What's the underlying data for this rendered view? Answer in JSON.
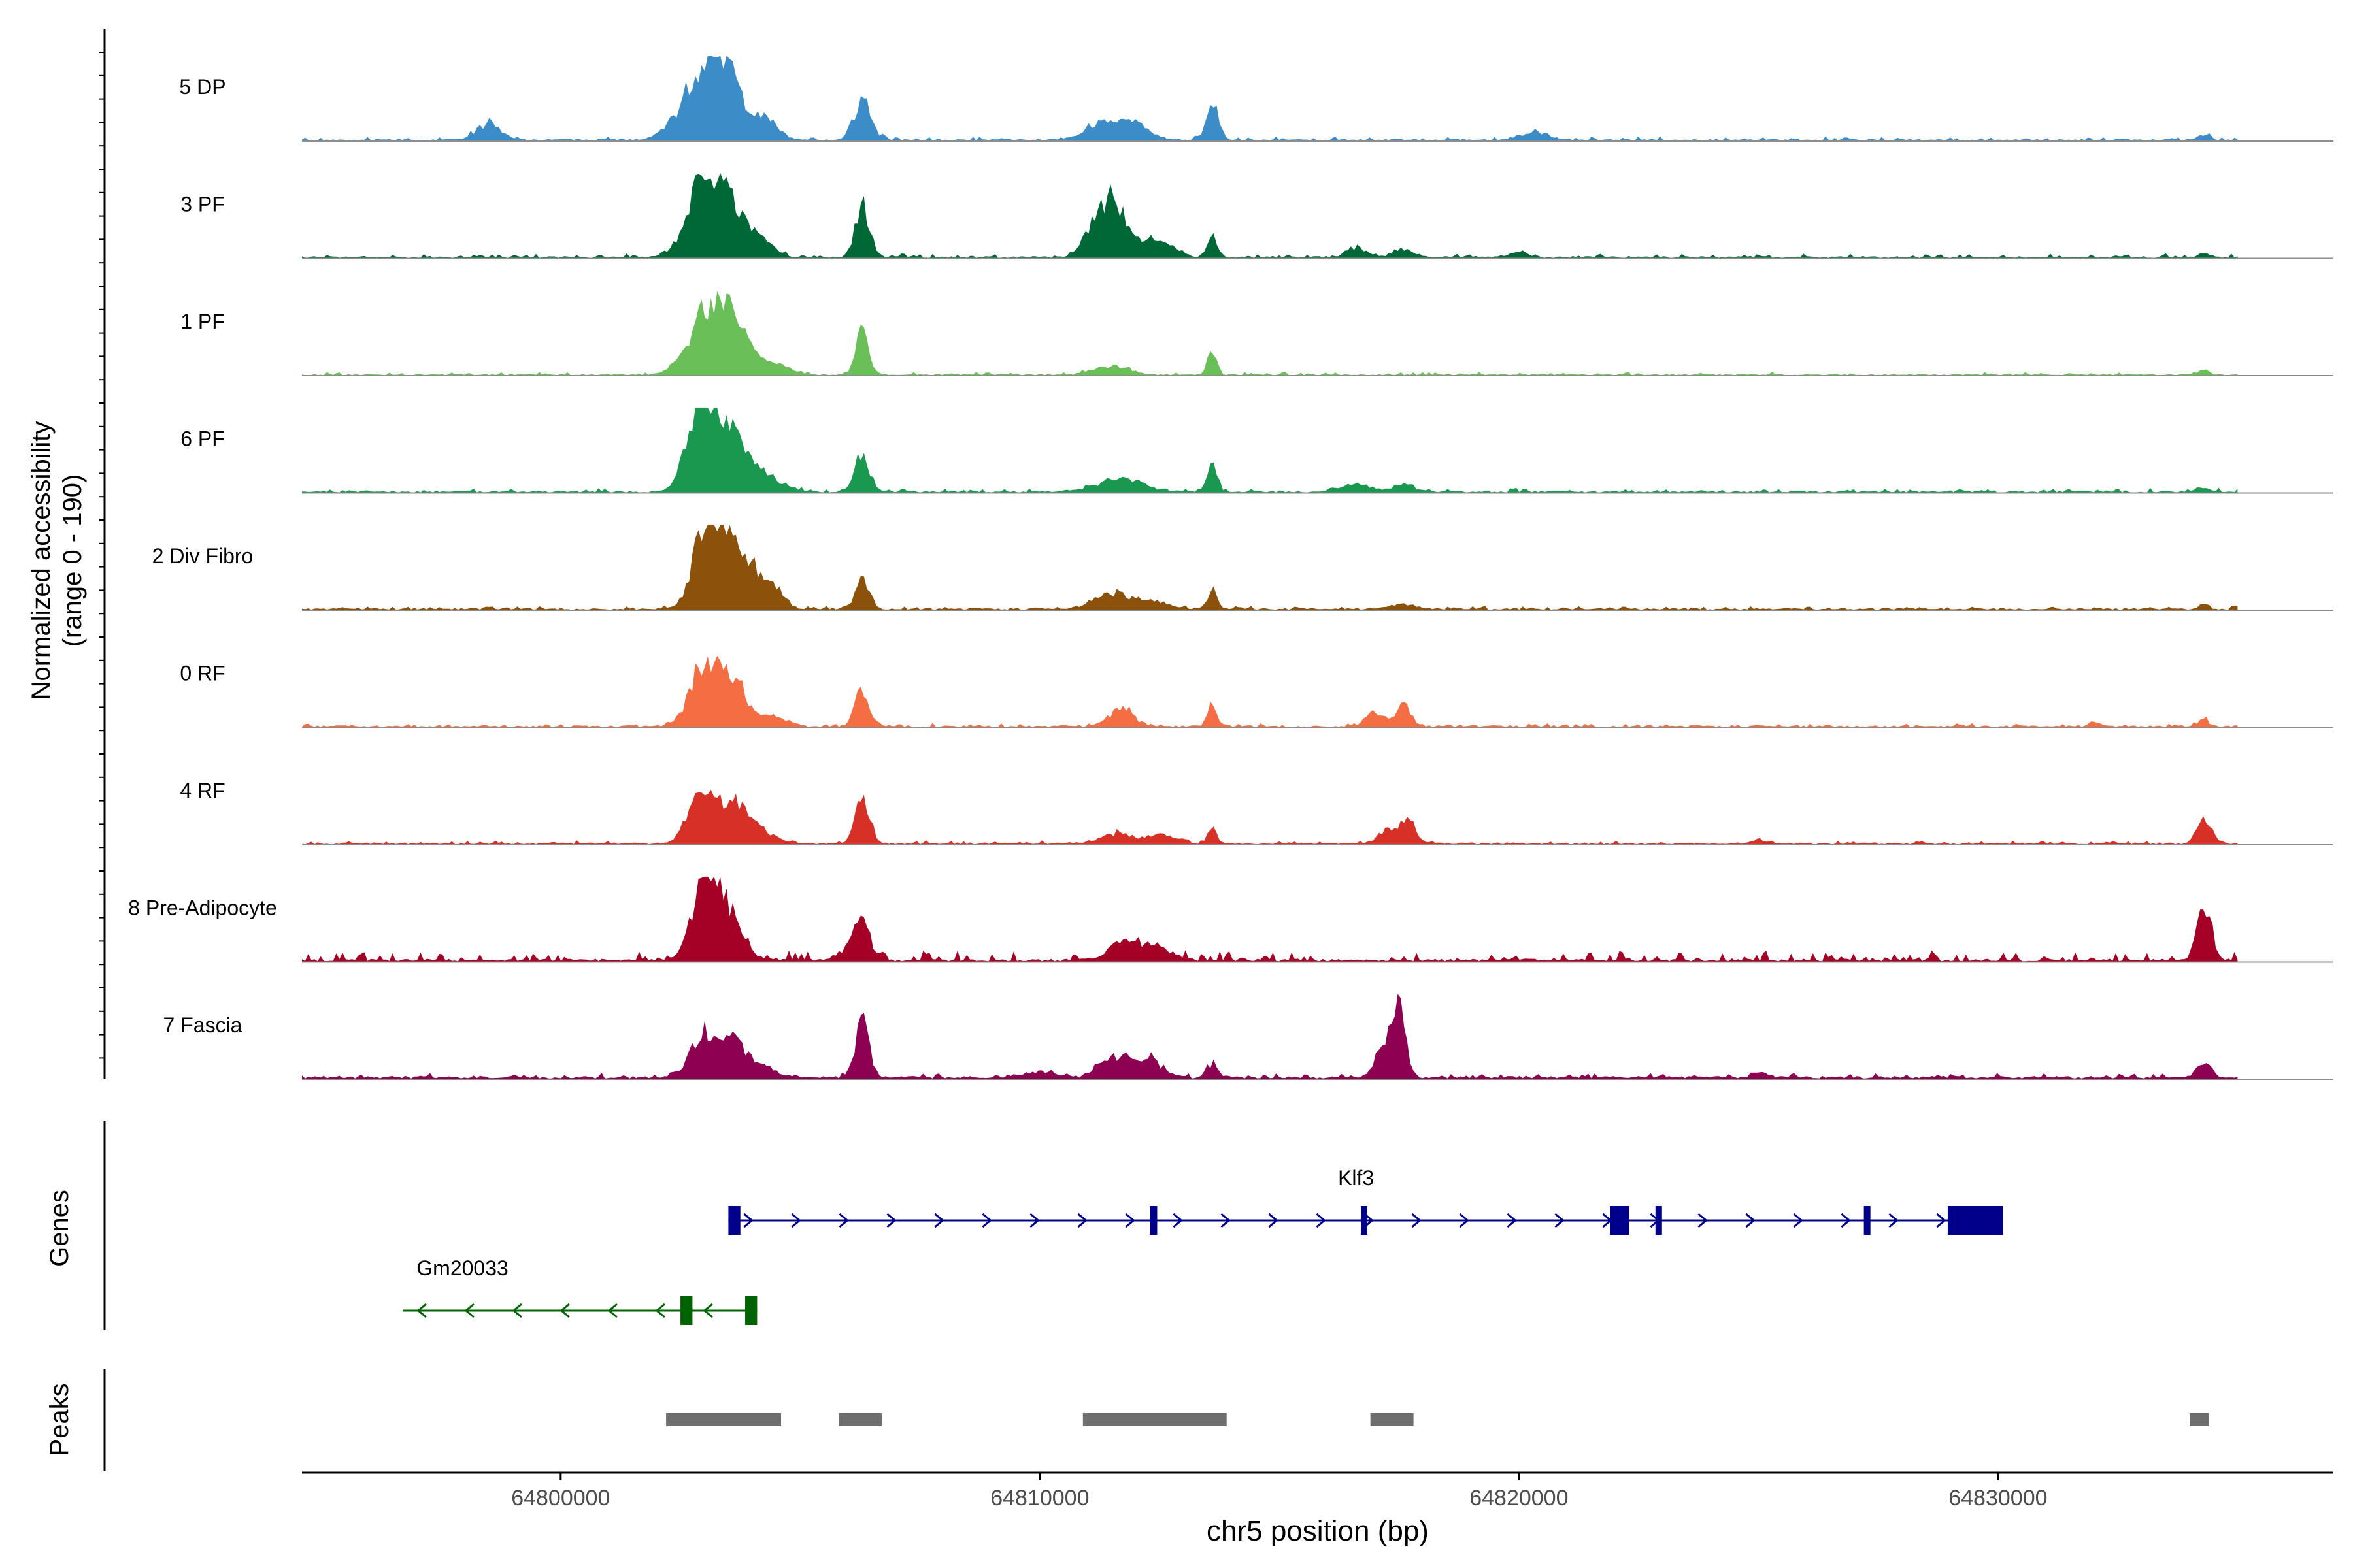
{
  "chart_data": {
    "type": "area",
    "title": "",
    "ylabel": "Normalized accessibility",
    "ylabel_range": "(range 0 - 190)",
    "xlabel": "chr5 position (bp)",
    "xlim": [
      64794600,
      64837000
    ],
    "xticks": [
      {
        "value": 64800000,
        "label": "64800000"
      },
      {
        "value": 64810000,
        "label": "64810000"
      },
      {
        "value": 64820000,
        "label": "64820000"
      },
      {
        "value": 64830000,
        "label": "64830000"
      }
    ],
    "accessibility_range": [
      0,
      190
    ],
    "track_start": 64794600,
    "track_end": 64835000,
    "tracks": [
      {
        "name": "5 DP",
        "color": "#3C8CC8",
        "base": 0.02,
        "noise": 0.012,
        "peaks": [
          [
            64798500,
            250,
            0.2
          ],
          [
            64803000,
            450,
            0.85
          ],
          [
            64803500,
            300,
            0.55
          ],
          [
            64804300,
            250,
            0.25
          ],
          [
            64806300,
            180,
            0.48
          ],
          [
            64811300,
            350,
            0.22
          ],
          [
            64812000,
            300,
            0.18
          ],
          [
            64813600,
            120,
            0.45
          ],
          [
            64820300,
            250,
            0.1
          ],
          [
            64834300,
            120,
            0.06
          ]
        ]
      },
      {
        "name": "3 PF",
        "color": "#006837",
        "base": 0.02,
        "noise": 0.012,
        "peaks": [
          [
            64802900,
            300,
            0.8
          ],
          [
            64803500,
            300,
            0.75
          ],
          [
            64804200,
            250,
            0.22
          ],
          [
            64806300,
            150,
            0.65
          ],
          [
            64811200,
            250,
            0.45
          ],
          [
            64811600,
            250,
            0.55
          ],
          [
            64812400,
            350,
            0.22
          ],
          [
            64813600,
            100,
            0.3
          ],
          [
            64816600,
            200,
            0.12
          ],
          [
            64817600,
            200,
            0.1
          ],
          [
            64820000,
            150,
            0.07
          ],
          [
            64834300,
            100,
            0.06
          ]
        ]
      },
      {
        "name": "1 PF",
        "color": "#6BBF59",
        "base": 0.015,
        "noise": 0.01,
        "peaks": [
          [
            64803100,
            400,
            0.85
          ],
          [
            64803700,
            300,
            0.45
          ],
          [
            64804500,
            300,
            0.12
          ],
          [
            64806300,
            130,
            0.55
          ],
          [
            64811500,
            350,
            0.12
          ],
          [
            64813600,
            90,
            0.35
          ],
          [
            64834300,
            120,
            0.05
          ]
        ]
      },
      {
        "name": "6 PF",
        "color": "#1A9850",
        "base": 0.02,
        "noise": 0.012,
        "peaks": [
          [
            64802800,
            250,
            0.55
          ],
          [
            64803100,
            300,
            0.8
          ],
          [
            64803700,
            300,
            0.55
          ],
          [
            64804400,
            300,
            0.15
          ],
          [
            64806300,
            150,
            0.45
          ],
          [
            64811700,
            450,
            0.17
          ],
          [
            64813600,
            100,
            0.35
          ],
          [
            64816600,
            300,
            0.1
          ],
          [
            64817600,
            200,
            0.1
          ],
          [
            64834300,
            150,
            0.05
          ]
        ]
      },
      {
        "name": "2 Div Fibro",
        "color": "#8C510A",
        "base": 0.02,
        "noise": 0.01,
        "peaks": [
          [
            64803000,
            250,
            0.95
          ],
          [
            64803500,
            250,
            0.85
          ],
          [
            64804000,
            250,
            0.45
          ],
          [
            64804500,
            200,
            0.2
          ],
          [
            64806300,
            150,
            0.35
          ],
          [
            64811500,
            350,
            0.2
          ],
          [
            64812300,
            350,
            0.1
          ],
          [
            64813600,
            100,
            0.25
          ],
          [
            64817600,
            250,
            0.06
          ],
          [
            64834300,
            100,
            0.06
          ]
        ]
      },
      {
        "name": "0 RF",
        "color": "#F46D43",
        "base": 0.02,
        "noise": 0.01,
        "peaks": [
          [
            64803000,
            300,
            0.75
          ],
          [
            64803600,
            300,
            0.55
          ],
          [
            64804500,
            250,
            0.12
          ],
          [
            64806300,
            150,
            0.45
          ],
          [
            64811700,
            250,
            0.22
          ],
          [
            64813600,
            100,
            0.25
          ],
          [
            64817000,
            200,
            0.18
          ],
          [
            64817600,
            150,
            0.25
          ],
          [
            64832000,
            100,
            0.06
          ],
          [
            64834300,
            120,
            0.08
          ]
        ]
      },
      {
        "name": "4 RF",
        "color": "#D73027",
        "base": 0.02,
        "noise": 0.01,
        "peaks": [
          [
            64802900,
            250,
            0.65
          ],
          [
            64803600,
            300,
            0.55
          ],
          [
            64804300,
            250,
            0.12
          ],
          [
            64806300,
            150,
            0.55
          ],
          [
            64811600,
            300,
            0.12
          ],
          [
            64812500,
            300,
            0.12
          ],
          [
            64813600,
            100,
            0.18
          ],
          [
            64817300,
            200,
            0.2
          ],
          [
            64817700,
            150,
            0.3
          ],
          [
            64825000,
            100,
            0.05
          ],
          [
            64834300,
            150,
            0.3
          ]
        ]
      },
      {
        "name": "8 Pre-Adipocyte",
        "color": "#A50026",
        "base": 0.03,
        "noise": 0.035,
        "peaks": [
          [
            64803000,
            250,
            0.95
          ],
          [
            64803500,
            300,
            0.55
          ],
          [
            64806300,
            150,
            0.45
          ],
          [
            64806000,
            200,
            0.15
          ],
          [
            64811800,
            350,
            0.22
          ],
          [
            64812500,
            300,
            0.12
          ],
          [
            64834300,
            150,
            0.65
          ]
        ]
      },
      {
        "name": "7 Fascia",
        "color": "#8E0152",
        "base": 0.03,
        "noise": 0.015,
        "peaks": [
          [
            64803000,
            300,
            0.55
          ],
          [
            64803600,
            250,
            0.45
          ],
          [
            64804200,
            250,
            0.15
          ],
          [
            64806300,
            140,
            0.75
          ],
          [
            64810000,
            300,
            0.08
          ],
          [
            64811600,
            300,
            0.28
          ],
          [
            64812300,
            250,
            0.22
          ],
          [
            64813600,
            120,
            0.18
          ],
          [
            64817500,
            130,
            0.95
          ],
          [
            64817200,
            200,
            0.35
          ],
          [
            64825000,
            150,
            0.08
          ],
          [
            64834300,
            150,
            0.18
          ]
        ]
      }
    ],
    "genes_label": "Genes",
    "genes": [
      {
        "name": "Klf3",
        "color": "#00008B",
        "strand": "+",
        "start": 64803500,
        "end": 64830100,
        "exons": [
          [
            64803500,
            64803750,
            1
          ],
          [
            64812300,
            64812450,
            1
          ],
          [
            64816700,
            64816760,
            1
          ],
          [
            64821900,
            64822300,
            1
          ],
          [
            64822850,
            64822950,
            1
          ],
          [
            64827200,
            64827300,
            1
          ],
          [
            64828950,
            64830100,
            1
          ]
        ]
      },
      {
        "name": "Gm20033",
        "color": "#006400",
        "strand": "-",
        "start": 64796700,
        "end": 64804100,
        "exons": [
          [
            64802500,
            64802750,
            1
          ],
          [
            64803850,
            64804100,
            1
          ]
        ]
      }
    ],
    "peaks_label": "Peaks",
    "peaks": [
      [
        64802200,
        64804600
      ],
      [
        64805800,
        64806700
      ],
      [
        64810900,
        64813900
      ],
      [
        64816900,
        64817800
      ],
      [
        64834000,
        64834400
      ]
    ]
  }
}
